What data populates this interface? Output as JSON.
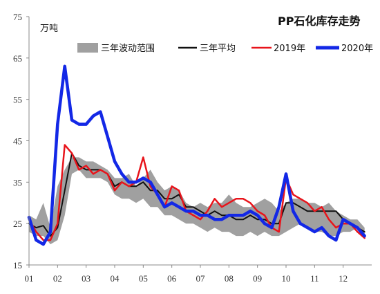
{
  "chart_data": {
    "type": "line",
    "title": "PP石化库存走势",
    "unit_label": "万吨",
    "ylim": [
      15,
      75
    ],
    "y_ticks": [
      15,
      25,
      35,
      45,
      55,
      65,
      75
    ],
    "x_ticks": [
      "01",
      "02",
      "03",
      "04",
      "05",
      "06",
      "07",
      "08",
      "09",
      "10",
      "11",
      "12"
    ],
    "x_range": [
      1,
      13
    ],
    "grid": false,
    "legend_position": "top",
    "band": {
      "name": "三年波动范围",
      "color": "#a0a0a0",
      "x": [
        1.0,
        1.25,
        1.5,
        1.75,
        2.0,
        2.25,
        2.5,
        2.75,
        3.0,
        3.25,
        3.5,
        3.75,
        4.0,
        4.25,
        4.5,
        4.75,
        5.0,
        5.25,
        5.5,
        5.75,
        6.0,
        6.25,
        6.5,
        6.75,
        7.0,
        7.25,
        7.5,
        7.75,
        8.0,
        8.25,
        8.5,
        8.75,
        9.0,
        9.25,
        9.5,
        9.75,
        10.0,
        10.25,
        10.5,
        10.75,
        11.0,
        11.25,
        11.5,
        11.75,
        12.0,
        12.25,
        12.5,
        12.75
      ],
      "low": [
        23,
        22,
        22,
        20,
        21,
        27,
        37,
        38,
        36,
        36,
        36,
        35,
        32,
        31,
        31,
        30,
        31,
        29,
        29,
        27,
        27,
        26,
        25,
        25,
        24,
        23,
        24,
        23,
        23,
        22,
        22,
        23,
        22,
        23,
        22,
        22,
        23,
        24,
        25,
        24,
        23,
        23,
        22,
        22,
        23,
        23,
        24,
        22
      ],
      "high": [
        27,
        26,
        30,
        24,
        34,
        38,
        41,
        41,
        40,
        40,
        39,
        38,
        36,
        36,
        37,
        34,
        36,
        38,
        35,
        33,
        34,
        33,
        30,
        29,
        30,
        29,
        30,
        30,
        32,
        30,
        29,
        29,
        30,
        31,
        30,
        28,
        30,
        31,
        31,
        30,
        30,
        29,
        30,
        28,
        27,
        26,
        26,
        24
      ]
    },
    "series": [
      {
        "name": "三年平均",
        "color": "#111111",
        "width": 2,
        "x": [
          1.0,
          1.25,
          1.5,
          1.75,
          2.0,
          2.25,
          2.5,
          2.75,
          3.0,
          3.25,
          3.5,
          3.75,
          4.0,
          4.25,
          4.5,
          4.75,
          5.0,
          5.25,
          5.5,
          5.75,
          6.0,
          6.25,
          6.5,
          6.75,
          7.0,
          7.25,
          7.5,
          7.75,
          8.0,
          8.25,
          8.5,
          8.75,
          9.0,
          9.25,
          9.5,
          9.75,
          10.0,
          10.25,
          10.5,
          10.75,
          11.0,
          11.25,
          11.5,
          11.75,
          12.0,
          12.25,
          12.5,
          12.75
        ],
        "y": [
          25,
          24,
          24.5,
          22,
          24,
          33,
          42,
          39,
          38,
          38,
          38,
          37,
          34,
          35,
          34,
          34,
          35,
          33,
          33,
          31,
          31,
          32,
          29,
          29,
          28,
          27,
          28,
          27,
          27,
          26,
          26,
          27,
          26,
          26,
          25,
          25,
          30,
          30,
          29,
          28,
          28,
          28,
          28,
          28,
          26,
          25,
          24,
          23
        ]
      },
      {
        "name": "2019年",
        "color": "#e8141b",
        "width": 2.5,
        "x": [
          1.0,
          1.25,
          1.5,
          1.75,
          2.0,
          2.25,
          2.5,
          2.75,
          3.0,
          3.25,
          3.5,
          3.75,
          4.0,
          4.25,
          4.5,
          4.75,
          5.0,
          5.25,
          5.5,
          5.75,
          6.0,
          6.25,
          6.5,
          6.75,
          7.0,
          7.25,
          7.5,
          7.75,
          8.0,
          8.25,
          8.5,
          8.75,
          9.0,
          9.25,
          9.5,
          9.75,
          10.0,
          10.25,
          10.5,
          10.75,
          11.0,
          11.25,
          11.5,
          11.75,
          12.0,
          12.25,
          12.5,
          12.75
        ],
        "y": [
          26,
          23,
          21,
          21,
          25,
          44,
          42,
          38,
          39,
          37,
          38,
          37,
          33,
          35,
          34,
          35,
          41,
          34,
          32,
          29,
          34,
          33,
          28,
          27,
          26,
          28,
          31,
          29,
          30,
          31,
          31,
          30,
          28,
          27,
          24,
          23,
          36,
          32,
          31,
          30,
          28,
          29,
          26,
          24,
          25,
          25,
          23,
          21.5
        ]
      },
      {
        "name": "2020年",
        "color": "#1328e6",
        "width": 4.5,
        "x": [
          1.0,
          1.25,
          1.5,
          1.75,
          2.0,
          2.25,
          2.5,
          2.75,
          3.0,
          3.25,
          3.5,
          3.75,
          4.0,
          4.25,
          4.5,
          4.75,
          5.0,
          5.25,
          5.5,
          5.75,
          6.0,
          6.25,
          6.5,
          6.75,
          7.0,
          7.25,
          7.5,
          7.75,
          8.0,
          8.25,
          8.5,
          8.75,
          9.0,
          9.25,
          9.5,
          9.75,
          10.0,
          10.25,
          10.5,
          10.75,
          11.0,
          11.25,
          11.5,
          11.75,
          12.0,
          12.25,
          12.5,
          12.75
        ],
        "y": [
          26.5,
          21,
          20,
          23,
          49,
          63,
          50,
          49,
          49,
          51,
          52,
          46,
          40,
          37,
          35,
          35,
          36,
          35,
          32,
          29,
          30,
          29,
          28,
          28,
          27,
          27,
          26,
          26,
          27,
          27,
          27,
          28,
          27,
          25,
          24,
          29,
          37,
          28,
          25,
          24,
          23,
          24,
          22,
          21,
          26,
          25,
          24,
          22
        ]
      }
    ],
    "legend": [
      "三年波动范围",
      "三年平均",
      "2019年",
      "2020年"
    ]
  }
}
